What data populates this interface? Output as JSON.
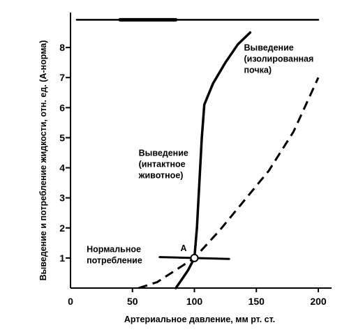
{
  "chart_data": {
    "type": "line",
    "xlabel": "Артериальное давление, мм рт. ст.",
    "ylabel": "Выведение и потребление жидкости, отн. ед. (А-норма)",
    "xlim": [
      0,
      200
    ],
    "ylim": [
      0,
      9
    ],
    "x_ticks": [
      0,
      50,
      100,
      150,
      200
    ],
    "y_ticks": [
      1,
      2,
      3,
      4,
      5,
      6,
      7,
      8
    ],
    "grid": false,
    "legend": "none",
    "series": [
      {
        "name": "Выведение (интактное животное)",
        "style": "solid",
        "color": "#000000",
        "points": [
          [
            85,
            0
          ],
          [
            90,
            0.3
          ],
          [
            95,
            0.6
          ],
          [
            100,
            1.0
          ],
          [
            102,
            2.0
          ],
          [
            104,
            3.5
          ],
          [
            106,
            5.0
          ],
          [
            108,
            6.1
          ],
          [
            115,
            6.8
          ],
          [
            125,
            7.5
          ],
          [
            135,
            8.1
          ],
          [
            145,
            8.5
          ]
        ]
      },
      {
        "name": "Выведение (изолированная почка)",
        "style": "dashed",
        "color": "#000000",
        "points": [
          [
            55,
            0
          ],
          [
            70,
            0.2
          ],
          [
            85,
            0.6
          ],
          [
            100,
            1.0
          ],
          [
            120,
            1.9
          ],
          [
            140,
            2.9
          ],
          [
            160,
            3.9
          ],
          [
            180,
            5.2
          ],
          [
            190,
            6.1
          ],
          [
            200,
            7.0
          ]
        ]
      },
      {
        "name": "Нормальное потребление",
        "style": "solid",
        "color": "#000000",
        "points": [
          [
            72,
            1.03
          ],
          [
            128,
            0.97
          ]
        ]
      },
      {
        "name": "",
        "style": "solid",
        "color": "#000000",
        "points": [
          [
            5,
            8.92
          ],
          [
            200,
            8.92
          ]
        ]
      },
      {
        "name": "",
        "style": "solid",
        "color": "#000000",
        "points": [
          [
            40,
            8.92
          ],
          [
            85,
            8.92
          ]
        ]
      }
    ],
    "equilibrium_point": {
      "label": "A",
      "x": 100,
      "y": 1.0
    },
    "annotations": [
      {
        "lines": [
          "Выведение",
          "(изолированная",
          "почка)"
        ],
        "anchor": [
          140,
          7.9
        ]
      },
      {
        "lines": [
          "Выведение",
          "(интактное",
          "животное)"
        ],
        "anchor": [
          55,
          4.4
        ]
      },
      {
        "lines": [
          "Нормальное",
          "потребление"
        ],
        "anchor": [
          13,
          1.2
        ]
      }
    ]
  }
}
